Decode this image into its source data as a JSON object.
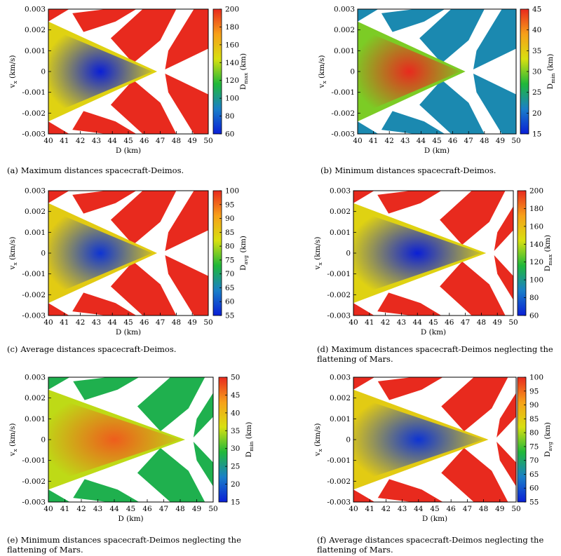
{
  "chart_data": [
    {
      "id": "a",
      "type": "heatmap",
      "caption_tag": "(a)",
      "caption": "Maximum distances spacecraft-Deimos.",
      "xlabel": "D (km)",
      "ylabel": "v_x (km/s)",
      "ylabel_main": "v",
      "ylabel_sub": "x",
      "ylabel_rest": " (km/s)",
      "xlim": [
        40,
        50
      ],
      "ylim": [
        -0.003,
        0.003
      ],
      "x_ticks": [
        "40",
        "41",
        "42",
        "43",
        "44",
        "45",
        "46",
        "47",
        "48",
        "49",
        "50"
      ],
      "y_ticks": [
        "-0.003",
        "-0.002",
        "-0.001",
        "0",
        "0.001",
        "0.002",
        "0.003"
      ],
      "colorbar": {
        "label_main": "D",
        "label_sub": "max",
        "label_rest": " (km)",
        "min": 60,
        "max": 200,
        "ticks": [
          "60",
          "80",
          "100",
          "120",
          "140",
          "160",
          "180",
          "200"
        ]
      },
      "field": {
        "vertex_D": 46.5,
        "center_value": 60,
        "fringe_value": 150,
        "ring_value": 200
      }
    },
    {
      "id": "b",
      "type": "heatmap",
      "caption_tag": "(b)",
      "caption": "Minimum distances spacecraft-Deimos.",
      "xlabel": "D (km)",
      "ylabel": "v_x (km/s)",
      "ylabel_main": "v",
      "ylabel_sub": "x",
      "ylabel_rest": " (km/s)",
      "xlim": [
        40,
        50
      ],
      "ylim": [
        -0.003,
        0.003
      ],
      "x_ticks": [
        "40",
        "41",
        "42",
        "43",
        "44",
        "45",
        "46",
        "47",
        "48",
        "49",
        "50"
      ],
      "y_ticks": [
        "-0.003",
        "-0.002",
        "-0.001",
        "0",
        "0.001",
        "0.002",
        "0.003"
      ],
      "colorbar": {
        "label_main": "D",
        "label_sub": "min",
        "label_rest": " (km)",
        "min": 15,
        "max": 45,
        "ticks": [
          "15",
          "20",
          "25",
          "30",
          "35",
          "40",
          "45"
        ]
      },
      "field": {
        "vertex_D": 46.5,
        "center_value": 45,
        "fringe_value": 30,
        "ring_value": 22
      }
    },
    {
      "id": "c",
      "type": "heatmap",
      "caption_tag": "(c)",
      "caption": "Average distances spacecraft-Deimos.",
      "xlabel": "D (km)",
      "ylabel": "v_x (km/s)",
      "ylabel_main": "v",
      "ylabel_sub": "x",
      "ylabel_rest": " (km/s)",
      "xlim": [
        40,
        50
      ],
      "ylim": [
        -0.003,
        0.003
      ],
      "x_ticks": [
        "40",
        "41",
        "42",
        "43",
        "44",
        "45",
        "46",
        "47",
        "48",
        "49",
        "50"
      ],
      "y_ticks": [
        "-0.003",
        "-0.002",
        "-0.001",
        "0",
        "0.001",
        "0.002",
        "0.003"
      ],
      "colorbar": {
        "label_main": "D",
        "label_sub": "avg",
        "label_rest": " (km)",
        "min": 55,
        "max": 100,
        "ticks": [
          "55",
          "60",
          "65",
          "70",
          "75",
          "80",
          "85",
          "90",
          "95",
          "100"
        ]
      },
      "field": {
        "vertex_D": 46.5,
        "center_value": 57,
        "fringe_value": 85,
        "ring_value": 100
      }
    },
    {
      "id": "d",
      "type": "heatmap",
      "caption_tag": "(d)",
      "caption": "Maximum distances spacecraft-Deimos neglecting the flattening of Mars.",
      "xlabel": "D (km)",
      "ylabel": "v_x (km/s)",
      "ylabel_main": "v",
      "ylabel_sub": "x",
      "ylabel_rest": " (km/s)",
      "xlim": [
        40,
        50
      ],
      "ylim": [
        -0.003,
        0.003
      ],
      "x_ticks": [
        "40",
        "41",
        "42",
        "43",
        "44",
        "45",
        "46",
        "47",
        "48",
        "49",
        "50"
      ],
      "y_ticks": [
        "-0.003",
        "-0.002",
        "-0.001",
        "0",
        "0.001",
        "0.002",
        "0.003"
      ],
      "colorbar": {
        "label_main": "D",
        "label_sub": "max",
        "label_rest": " (km)",
        "min": 60,
        "max": 200,
        "ticks": [
          "60",
          "80",
          "100",
          "120",
          "140",
          "160",
          "180",
          "200"
        ]
      },
      "field": {
        "vertex_D": 48.0,
        "center_value": 60,
        "fringe_value": 150,
        "ring_value": 200
      }
    },
    {
      "id": "e",
      "type": "heatmap",
      "caption_tag": "(e)",
      "caption": "Minimum distances spacecraft-Deimos neglecting the flattening of Mars.",
      "xlabel": "D (km)",
      "ylabel": "v_x (km/s)",
      "ylabel_main": "v",
      "ylabel_sub": "x",
      "ylabel_rest": " (km/s)",
      "xlim": [
        40,
        50
      ],
      "ylim": [
        -0.003,
        0.003
      ],
      "x_ticks": [
        "40",
        "41",
        "42",
        "43",
        "44",
        "45",
        "46",
        "47",
        "48",
        "49",
        "50"
      ],
      "y_ticks": [
        "-0.003",
        "-0.002",
        "-0.001",
        "0",
        "0.001",
        "0.002",
        "0.003"
      ],
      "colorbar": {
        "label_main": "D",
        "label_sub": "min",
        "label_rest": " (km)",
        "min": 15,
        "max": 50,
        "ticks": [
          "15",
          "20",
          "25",
          "30",
          "35",
          "40",
          "45",
          "50"
        ]
      },
      "field": {
        "vertex_D": 48.0,
        "center_value": 47,
        "fringe_value": 35,
        "ring_value": 28
      }
    },
    {
      "id": "f",
      "type": "heatmap",
      "caption_tag": "(f)",
      "caption": "Average distances spacecraft-Deimos neglecting the flattening of Mars.",
      "xlabel": "D (km)",
      "ylabel": "v_x (km/s)",
      "ylabel_main": "v",
      "ylabel_sub": "x",
      "ylabel_rest": " (km/s)",
      "xlim": [
        40,
        50
      ],
      "ylim": [
        -0.003,
        0.003
      ],
      "x_ticks": [
        "40",
        "41",
        "42",
        "43",
        "44",
        "45",
        "46",
        "47",
        "48",
        "49",
        "50"
      ],
      "y_ticks": [
        "-0.003",
        "-0.002",
        "-0.001",
        "0",
        "0.001",
        "0.002",
        "0.003"
      ],
      "colorbar": {
        "label_main": "D",
        "label_sub": "avg",
        "label_rest": " (km)",
        "min": 55,
        "max": 100,
        "ticks": [
          "55",
          "60",
          "65",
          "70",
          "75",
          "80",
          "85",
          "90",
          "95",
          "100"
        ]
      },
      "field": {
        "vertex_D": 48.0,
        "center_value": 57,
        "fringe_value": 85,
        "ring_value": 100
      }
    }
  ],
  "colormap": [
    "#0a1fd6",
    "#1a7fc8",
    "#20b83a",
    "#d8e010",
    "#f7a019",
    "#e82a1e"
  ]
}
